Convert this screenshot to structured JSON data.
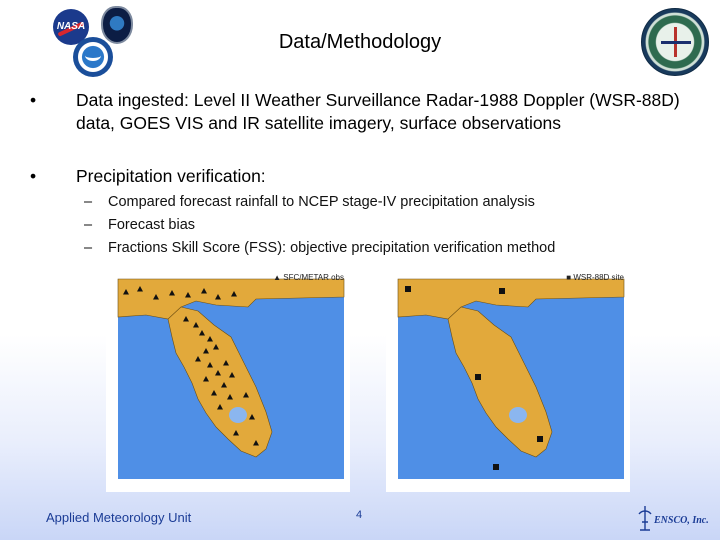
{
  "slide": {
    "title": "Data/Methodology",
    "bullets": [
      "Data ingested: Level II Weather Surveillance Radar-1988 Doppler (WSR-88D) data, GOES VIS and IR satellite imagery, surface observations",
      "Precipitation verification:"
    ],
    "bullet_marker": "•",
    "sub_marker": "–",
    "sub_bullets": [
      "Compared forecast rainfall to NCEP stage-IV precipitation analysis",
      "Forecast bias",
      "Fractions Skill Score (FSS): objective precipitation verification method"
    ]
  },
  "maps": {
    "left": {
      "legend": "SFC/METAR obs",
      "marker": "triangle"
    },
    "right": {
      "legend": "WSR-88D site",
      "marker": "square"
    }
  },
  "footer": {
    "left_text": "Applied Meteorology Unit",
    "page_number": "4",
    "company": "ENSCO, Inc."
  },
  "colors": {
    "title_text": "#000000",
    "footer_text": "#1b3c96",
    "land": "#e2a93b",
    "water": "#4f8fe6",
    "lake": "#8bb6ef"
  },
  "logos": [
    "nasa-logo",
    "45th-weather-squadron-seal",
    "noaa-logo",
    "amu-seal",
    "ensco-logo"
  ]
}
